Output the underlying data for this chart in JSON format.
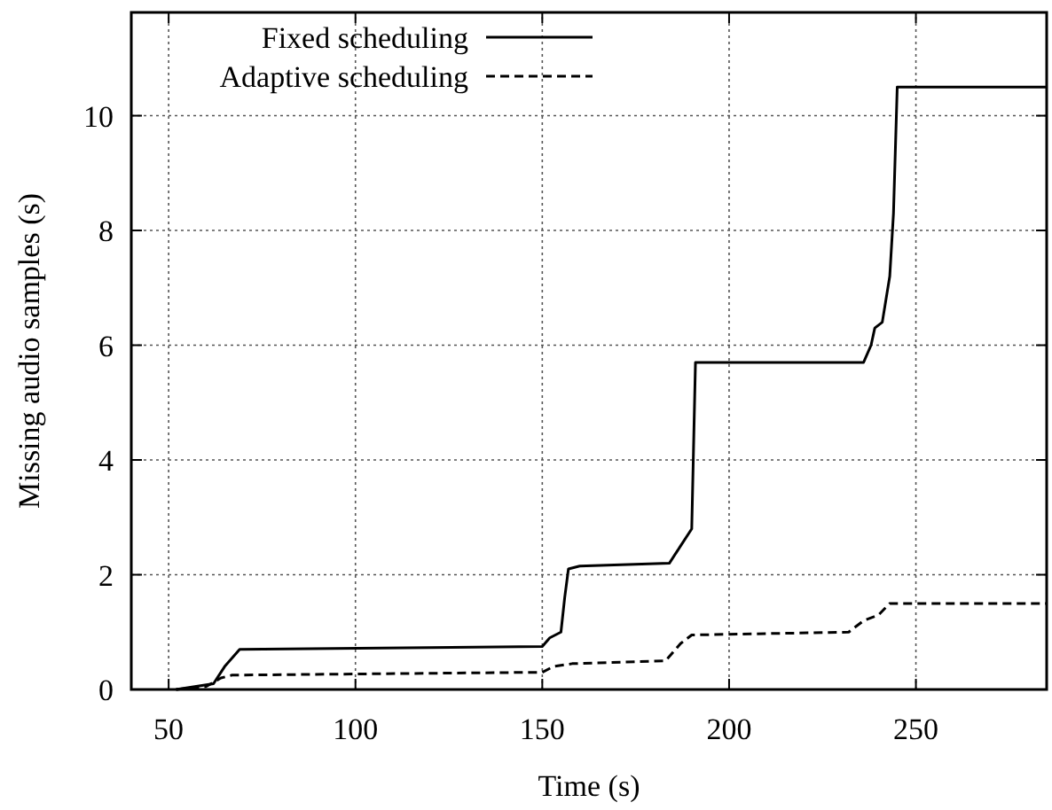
{
  "chart_data": {
    "type": "line",
    "xlabel": "Time (s)",
    "ylabel": "Missing audio samples (s)",
    "xlim": [
      40,
      285
    ],
    "ylim": [
      0,
      11.8
    ],
    "xticks": [
      50,
      100,
      150,
      200,
      250
    ],
    "yticks": [
      0,
      2,
      4,
      6,
      8,
      10
    ],
    "grid": true,
    "legend": "top left",
    "marker": "none",
    "series": [
      {
        "name": "Fixed scheduling",
        "color": "#000000",
        "line_style": "solid",
        "x": [
          52,
          57,
          62,
          65,
          69,
          150,
          152,
          155,
          156,
          157,
          160,
          184,
          187,
          190,
          191,
          236,
          238,
          239,
          241,
          243,
          244,
          245,
          285
        ],
        "values": [
          0,
          0.05,
          0.1,
          0.4,
          0.7,
          0.75,
          0.9,
          1.0,
          1.6,
          2.1,
          2.15,
          2.2,
          2.5,
          2.8,
          5.7,
          5.7,
          6.0,
          6.3,
          6.4,
          7.2,
          8.3,
          10.5,
          10.5
        ]
      },
      {
        "name": "Adaptive scheduling",
        "color": "#000000",
        "line_style": "dashed",
        "x": [
          52,
          60,
          64,
          67,
          150,
          153,
          158,
          183,
          187,
          190,
          232,
          236,
          240,
          243,
          285
        ],
        "values": [
          0,
          0.05,
          0.2,
          0.25,
          0.3,
          0.4,
          0.45,
          0.5,
          0.8,
          0.95,
          1.0,
          1.2,
          1.3,
          1.5,
          1.5
        ]
      }
    ]
  }
}
